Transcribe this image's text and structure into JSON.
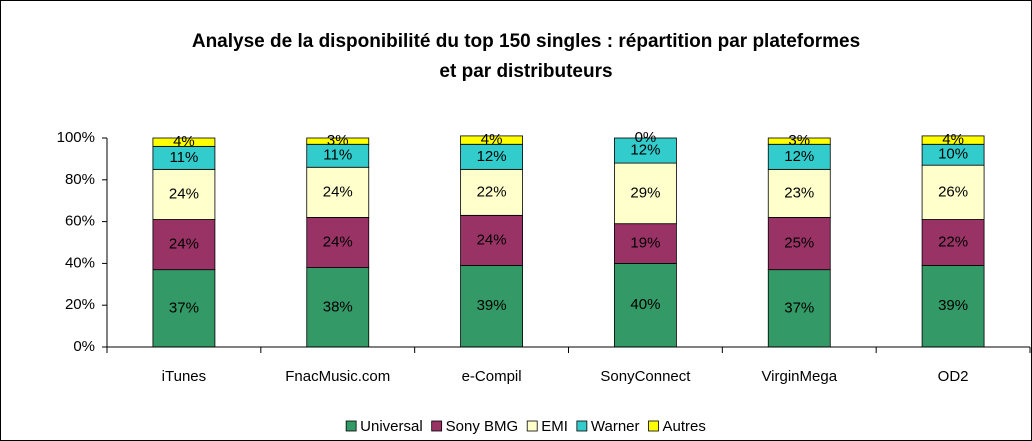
{
  "chart_data": {
    "type": "stacked_bar",
    "title": [
      "Analyse de la disponibilité du top 150 singles : répartition par plateformes",
      "et par distributeurs"
    ],
    "categories": [
      "iTunes",
      "FnacMusic.com",
      "e-Compil",
      "SonyConnect",
      "VirginMega",
      "OD2"
    ],
    "series": [
      {
        "name": "Universal",
        "color": "#339966",
        "values": [
          37,
          38,
          39,
          40,
          37,
          39
        ],
        "value_labels": [
          "37%",
          "38%",
          "39%",
          "40%",
          "37%",
          "39%"
        ]
      },
      {
        "name": "Sony BMG",
        "color": "#993366",
        "values": [
          24,
          24,
          24,
          19,
          25,
          22
        ],
        "value_labels": [
          "24%",
          "24%",
          "24%",
          "19%",
          "25%",
          "22%"
        ]
      },
      {
        "name": "EMI",
        "color": "#FFFFCC",
        "values": [
          24,
          24,
          22,
          29,
          23,
          26
        ],
        "value_labels": [
          "24%",
          "24%",
          "22%",
          "29%",
          "23%",
          "26%"
        ]
      },
      {
        "name": "Warner",
        "color": "#33CCCC",
        "values": [
          11,
          11,
          12,
          12,
          12,
          10
        ],
        "value_labels": [
          "11%",
          "11%",
          "12%",
          "12%",
          "12%",
          "10%"
        ]
      },
      {
        "name": "Autres",
        "color": "#FFFF00",
        "values": [
          4,
          3,
          4,
          0,
          3,
          4
        ],
        "value_labels": [
          "4%",
          "3%",
          "4%",
          "0%",
          "3%",
          "4%"
        ]
      }
    ],
    "ylim": [
      0,
      100
    ],
    "yticks": [
      {
        "value": 0,
        "label": "0%"
      },
      {
        "value": 20,
        "label": "20%"
      },
      {
        "value": 40,
        "label": "40%"
      },
      {
        "value": 60,
        "label": "60%"
      },
      {
        "value": 80,
        "label": "80%"
      },
      {
        "value": 100,
        "label": "100%"
      }
    ],
    "grid": false,
    "legend": "bottom"
  }
}
